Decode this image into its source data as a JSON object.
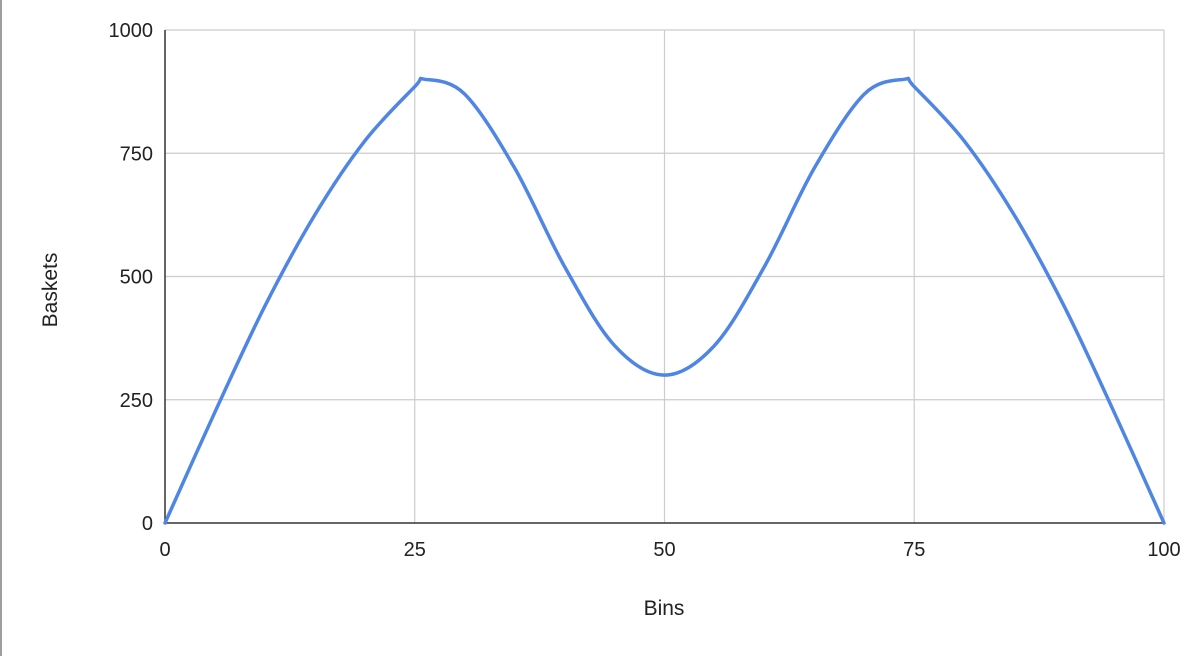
{
  "chart_data": {
    "type": "line",
    "xlabel": "Bins",
    "ylabel": "Baskets",
    "xlim": [
      0,
      100
    ],
    "ylim": [
      0,
      1000
    ],
    "x_ticks": [
      0,
      25,
      50,
      75,
      100
    ],
    "y_ticks": [
      0,
      250,
      500,
      750,
      1000
    ],
    "grid": true,
    "legend": "none",
    "series": [
      {
        "color": "#4f86e4",
        "x": [
          0,
          5,
          10,
          15,
          20,
          25,
          26,
          30,
          35,
          40,
          45,
          50,
          55,
          60,
          65,
          70,
          74,
          75,
          80,
          85,
          90,
          95,
          100
        ],
        "y": [
          0,
          225,
          440,
          625,
          775,
          885,
          900,
          870,
          720,
          520,
          360,
          300,
          360,
          520,
          720,
          870,
          900,
          885,
          775,
          625,
          440,
          225,
          0
        ]
      }
    ]
  },
  "colors": {
    "line": "#4f86e4",
    "grid": "#cccccc",
    "axis": "#333333",
    "text": "#222222"
  }
}
